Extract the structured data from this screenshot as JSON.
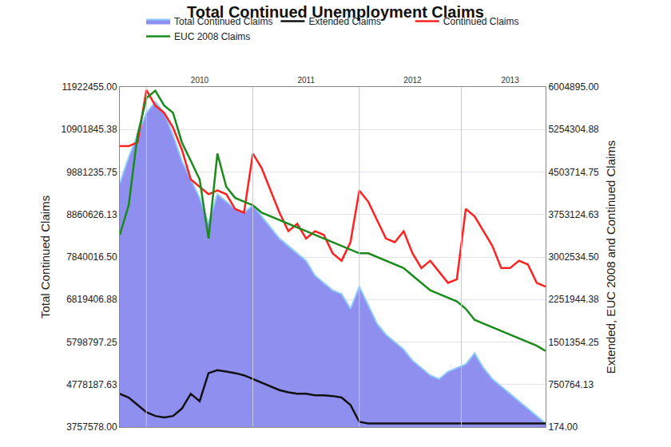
{
  "chart_data": {
    "type": "line",
    "title": "Total Continued Unemployment Claims",
    "y_label": "Total Continued Claims",
    "y2_label": "Extended, EUC 2008 and Continued Claims",
    "categories": [
      null,
      null,
      null,
      null,
      null,
      null,
      null,
      null,
      null,
      "2010",
      null,
      null,
      null,
      null,
      null,
      null,
      null,
      null,
      null,
      null,
      null,
      "2011",
      null,
      null,
      null,
      null,
      null,
      null,
      null,
      null,
      null,
      null,
      null,
      "2012",
      null,
      null,
      null,
      null,
      null,
      null,
      null,
      null,
      null,
      null,
      "2013",
      null,
      null,
      null,
      null
    ],
    "series": [
      {
        "name": "Total Continued Claims",
        "type": "area",
        "axis": "y",
        "color": "#8f8ff0",
        "values": [
          9615000,
          10236000,
          10769000,
          11301000,
          11567000,
          11301000,
          10769000,
          10147000,
          9704000,
          9260000,
          8639000,
          9349000,
          9171000,
          8994000,
          8905000,
          9082000,
          8816000,
          8550000,
          8284000,
          8106000,
          7929000,
          7751000,
          7396000,
          7219000,
          7041000,
          6952000,
          6597000,
          7130000,
          6686000,
          6242000,
          5976000,
          5799000,
          5621000,
          5355000,
          5178000,
          5000000,
          4911000,
          5089000,
          5178000,
          5266000,
          5532000,
          5178000,
          4911000,
          4734000,
          4556000,
          4379000,
          4201000,
          4024000,
          3846000
        ]
      },
      {
        "name": "Extended Claims",
        "type": "line",
        "axis": "y2",
        "color": "#111111",
        "values": [
          588000,
          522000,
          392000,
          261000,
          196000,
          170000,
          196000,
          327000,
          588000,
          457000,
          953000,
          1005000,
          979000,
          953000,
          914000,
          849000,
          783000,
          718000,
          653000,
          614000,
          588000,
          588000,
          561000,
          561000,
          548000,
          522000,
          392000,
          92000,
          65000,
          65000,
          65000,
          65000,
          65000,
          65000,
          65000,
          65000,
          65000,
          65000,
          65000,
          65000,
          65000,
          65000,
          65000,
          65000,
          65000,
          65000,
          65000,
          65000,
          65000
        ]
      },
      {
        "name": "Continued Claims",
        "type": "line",
        "axis": "y2",
        "color": "#ff2020",
        "values": [
          4961000,
          4961000,
          5026000,
          5950000,
          5679000,
          5548000,
          5287000,
          4895000,
          4373000,
          4243000,
          4112000,
          4177000,
          4112000,
          3851000,
          3786000,
          4830000,
          4569000,
          4177000,
          3786000,
          3459000,
          3590000,
          3329000,
          3459000,
          3394000,
          3068000,
          2937000,
          3263000,
          4177000,
          3981000,
          3655000,
          3329000,
          3263000,
          3459000,
          3068000,
          2807000,
          2937000,
          2741000,
          2546000,
          2611000,
          3851000,
          3720000,
          3459000,
          3198000,
          2807000,
          2807000,
          2937000,
          2872000,
          2546000,
          2480000
        ]
      },
      {
        "name": "EUC 2008 Claims",
        "type": "line",
        "axis": "y2",
        "color": "#1a8a1a",
        "values": [
          3394000,
          3916000,
          5157000,
          5809000,
          5940000,
          5679000,
          5548000,
          5026000,
          4700000,
          4373000,
          3329000,
          4830000,
          4243000,
          4047000,
          3981000,
          3916000,
          3786000,
          3720000,
          3655000,
          3590000,
          3525000,
          3459000,
          3394000,
          3329000,
          3263000,
          3198000,
          3133000,
          3068000,
          3068000,
          3003000,
          2937000,
          2872000,
          2807000,
          2676000,
          2546000,
          2415000,
          2350000,
          2285000,
          2219000,
          2089000,
          1893000,
          1828000,
          1762000,
          1697000,
          1632000,
          1567000,
          1501000,
          1436000,
          1345000
        ]
      }
    ],
    "ylim": [
      3757578,
      11922455
    ],
    "yticks": [
      {
        "value": 3757578,
        "label": "3757578.00"
      },
      {
        "value": 4778187.63,
        "label": "4778187.63"
      },
      {
        "value": 5798797.25,
        "label": "5798797.25"
      },
      {
        "value": 6819406.88,
        "label": "6819406.88"
      },
      {
        "value": 7840016.5,
        "label": "7840016.50"
      },
      {
        "value": 8860626.13,
        "label": "8860626.13"
      },
      {
        "value": 9881235.75,
        "label": "9881235.75"
      },
      {
        "value": 10901845.38,
        "label": "10901845.38"
      },
      {
        "value": 11922455,
        "label": "11922455.00"
      }
    ],
    "y2lim": [
      174,
      6004895
    ],
    "y2ticks": [
      {
        "value": 174,
        "label": "174.00"
      },
      {
        "value": 750764.13,
        "label": "750764.13"
      },
      {
        "value": 1501354.25,
        "label": "1501354.25"
      },
      {
        "value": 2251944.38,
        "label": "2251944.38"
      },
      {
        "value": 3002534.5,
        "label": "3002534.50"
      },
      {
        "value": 3753124.63,
        "label": "3753124.63"
      },
      {
        "value": 4503714.75,
        "label": "4503714.75"
      },
      {
        "value": 5254304.88,
        "label": "5254304.88"
      },
      {
        "value": 6004895,
        "label": "6004895.00"
      }
    ],
    "grid": true,
    "legend": "top"
  }
}
